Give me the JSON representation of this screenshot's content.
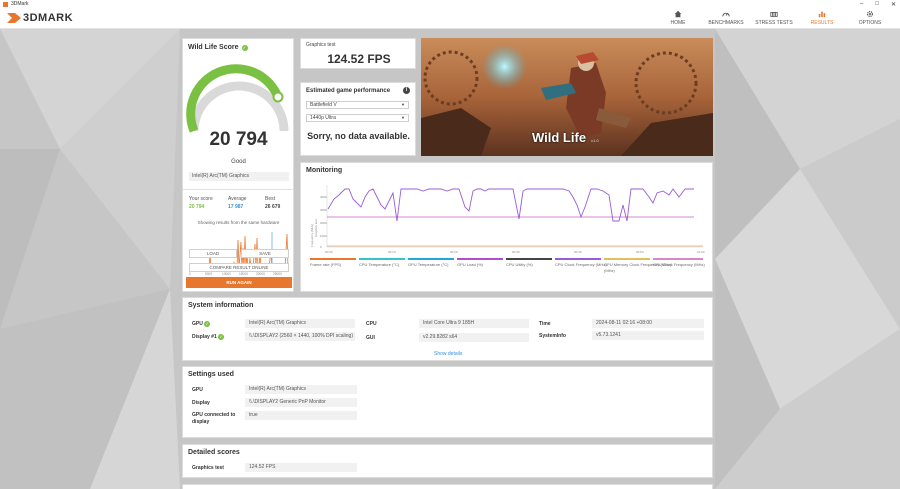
{
  "window": {
    "title": "3DMark"
  },
  "app": {
    "logo_text": "3DMARK",
    "accent": "#e8772e"
  },
  "nav": [
    {
      "label": "HOME",
      "icon": "home-icon"
    },
    {
      "label": "BENCHMARKS",
      "icon": "gauge-icon"
    },
    {
      "label": "STRESS TESTS",
      "icon": "stress-icon"
    },
    {
      "label": "RESULTS",
      "icon": "bar-chart-icon",
      "active": true
    },
    {
      "label": "OPTIONS",
      "icon": "gear-icon"
    }
  ],
  "score": {
    "title": "Wild Life Score",
    "value": "20 794",
    "rating": "Good",
    "gpu": "Intel(R) Arc(TM) Graphics",
    "your_score_label": "Your score",
    "your_score": "20 794",
    "average_label": "Average",
    "average": "17 987",
    "best_label": "Best",
    "best": "26 679",
    "caption": "Showing results from the same hardware",
    "load_label": "LOAD",
    "save_label": "SAVE",
    "compare_label": "COMPARE RESULT ONLINE",
    "run_label": "RUN AGAIN",
    "hist_ticks": [
      "0",
      "5000",
      "10000",
      "15000",
      "20000",
      "25000"
    ]
  },
  "graphics_test": {
    "label": "Graphics test",
    "fps": "124.52 FPS"
  },
  "estimated": {
    "title": "Estimated game performance",
    "game": "Battlefield V",
    "resolution": "1440p Ultra",
    "message": "Sorry, no data available."
  },
  "hero": {
    "title": "Wild Life",
    "version": "v1.0"
  },
  "monitoring": {
    "title": "Monitoring",
    "y_label": "Frequency (MHz)",
    "y_sub": "Graphics test",
    "y_ticks": [
      "4000",
      "3000",
      "2000",
      "1000",
      "0"
    ],
    "x_ticks": [
      "00:00",
      "00:10",
      "00:20",
      "00:30",
      "00:40",
      "00:50",
      "01:00"
    ],
    "legend": [
      {
        "label": "Frame rate (FPS)",
        "color": "#e8772e"
      },
      {
        "label": "CPU Temperature (°C)",
        "color": "#39c3c3"
      },
      {
        "label": "GPU Temperature (°C)",
        "color": "#1fa8d8"
      },
      {
        "label": "GPU Load (%)",
        "color": "#b04fc9"
      },
      {
        "label": "CPU Utility (%)",
        "color": "#444444"
      },
      {
        "label": "CPU Clock Frequency (MHz)",
        "color": "#9a5cd6"
      },
      {
        "label": "GPU Memory Clock Frequency (MHz)",
        "color": "#e0c05a"
      },
      {
        "label": "GPU Clock Frequency (MHz)",
        "color": "#d986c8"
      }
    ],
    "legend_extra": "(MHz)"
  },
  "system": {
    "title": "System information",
    "gpu_label": "GPU",
    "gpu": "Intel(R) Arc(TM) Graphics",
    "display_label": "Display #1",
    "display": "\\\\.\\DISPLAY2 (2560 × 1440, 100% DPI scaling)",
    "cpu_label": "CPU",
    "cpu": "Intel Core Ultra 9 185H",
    "gui_label": "GUI",
    "gui": "v2.29.8282 s64",
    "time_label": "Time",
    "time": "2024-08-11 02:16 +08:00",
    "sysinfo_label": "SystemInfo",
    "sysinfo": "v5.73.1241",
    "show_details": "Show details"
  },
  "settings": {
    "title": "Settings used",
    "gpu_label": "GPU",
    "gpu": "Intel(R) Arc(TM) Graphics",
    "display_label": "Display",
    "display": "\\\\.\\DISPLAY2 Generic PnP Monitor",
    "connected_label": "GPU connected to display",
    "connected": "true"
  },
  "detailed": {
    "title": "Detailed scores",
    "graphics_label": "Graphics test",
    "graphics": "124.52 FPS"
  }
}
